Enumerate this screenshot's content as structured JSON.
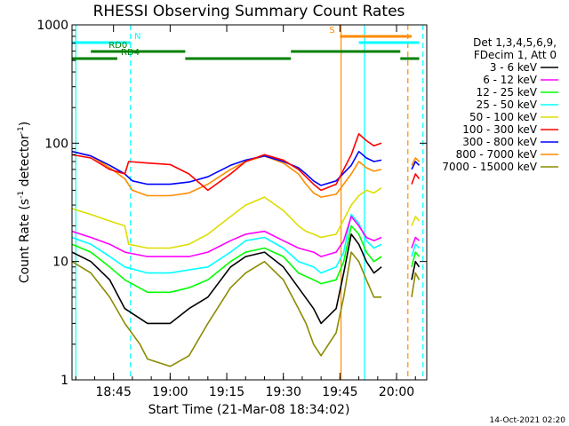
{
  "chart_data": {
    "type": "line",
    "title": "RHESSI Observing Summary Count Rates",
    "xlabel": "Start Time (21-Mar-08 18:34:02)",
    "ylabel_main": "Count Rate (s",
    "ylabel_sup1": "-1",
    "ylabel_mid": " detector",
    "ylabel_sup2": "-1",
    "ylabel_end": ")",
    "yscale": "log",
    "ylim": [
      1,
      1000
    ],
    "xlim_minutes": [
      0,
      94
    ],
    "x_tick_minutes": [
      11,
      26,
      41,
      56,
      71,
      86
    ],
    "x_tick_labels": [
      "18:45",
      "19:00",
      "19:15",
      "19:30",
      "19:45",
      "20:00"
    ],
    "y_tick_values": [
      1,
      10,
      100,
      1000
    ],
    "y_tick_labels": [
      "1",
      "10",
      "100",
      "1000"
    ],
    "legend_header": [
      "Det 1,3,4,5,6,9,",
      "FDecim 1, Att 0"
    ],
    "series": [
      {
        "name": "3 - 6 keV",
        "color": "#000000",
        "segments": [
          {
            "x": [
              0,
              5,
              10,
              14,
              20,
              26,
              31,
              36,
              42,
              46,
              51,
              56,
              60,
              64,
              66,
              70,
              72,
              74,
              76,
              78,
              80,
              82
            ],
            "y": [
              12,
              10,
              7,
              4,
              3,
              3,
              4,
              5,
              9,
              11,
              12,
              9,
              6,
              4,
              3,
              4,
              8,
              17,
              14,
              10,
              8,
              9
            ]
          },
          {
            "x": [
              90,
              91,
              92
            ],
            "y": [
              7,
              10,
              9
            ]
          }
        ]
      },
      {
        "name": "6 - 12 keV",
        "color": "#ff00ff",
        "segments": [
          {
            "x": [
              0,
              5,
              10,
              14,
              20,
              26,
              31,
              36,
              42,
              46,
              51,
              56,
              60,
              64,
              66,
              70,
              72,
              74,
              76,
              78,
              80,
              82
            ],
            "y": [
              18,
              16,
              14,
              12,
              11,
              11,
              11,
              12,
              15,
              17,
              18,
              15,
              13,
              12,
              11,
              12,
              15,
              24,
              20,
              16,
              15,
              16
            ]
          },
          {
            "x": [
              90,
              91,
              92
            ],
            "y": [
              13,
              16,
              15
            ]
          }
        ]
      },
      {
        "name": "12 - 25 keV",
        "color": "#00ff00",
        "segments": [
          {
            "x": [
              0,
              5,
              10,
              14,
              20,
              26,
              31,
              36,
              42,
              46,
              51,
              56,
              60,
              64,
              66,
              70,
              72,
              74,
              76,
              78,
              80,
              82
            ],
            "y": [
              14,
              12,
              9,
              7,
              5.5,
              5.5,
              6,
              7,
              10,
              12,
              13,
              11,
              8,
              7,
              6.5,
              7,
              10,
              20,
              17,
              12,
              10,
              11
            ]
          },
          {
            "x": [
              90,
              91,
              92
            ],
            "y": [
              9,
              12,
              11
            ]
          }
        ]
      },
      {
        "name": "25 - 50 keV",
        "color": "#00ffff",
        "segments": [
          {
            "x": [
              0,
              5,
              10,
              14,
              20,
              26,
              31,
              36,
              42,
              46,
              51,
              56,
              60,
              64,
              66,
              70,
              72,
              74,
              76,
              78,
              80,
              82
            ],
            "y": [
              16,
              14,
              11,
              9,
              8,
              8,
              8.5,
              9,
              12,
              15,
              16,
              13,
              10,
              9,
              8,
              9,
              12,
              25,
              21,
              15,
              13,
              14
            ]
          },
          {
            "x": [
              90,
              91,
              92
            ],
            "y": [
              11,
              14,
              13
            ]
          }
        ]
      },
      {
        "name": "50 - 100 keV",
        "color": "#dddd00",
        "segments": [
          {
            "x": [
              0,
              5,
              10,
              14,
              15,
              20,
              26,
              31,
              36,
              42,
              46,
              51,
              56,
              60,
              62,
              64,
              66,
              70,
              74,
              76,
              78,
              80,
              82
            ],
            "y": [
              28,
              25,
              22,
              20,
              14,
              13,
              13,
              14,
              17,
              24,
              30,
              35,
              27,
              20,
              18,
              17,
              16,
              17,
              30,
              36,
              40,
              38,
              42
            ]
          },
          {
            "x": [
              90,
              91,
              92
            ],
            "y": [
              20,
              24,
              22
            ]
          }
        ]
      },
      {
        "name": "100 - 300 keV",
        "color": "#ff0000",
        "segments": [
          {
            "x": [
              0,
              5,
              10,
              14,
              15,
              20,
              26,
              31,
              36,
              42,
              46,
              51,
              56,
              60,
              62,
              64,
              66,
              70,
              74,
              76,
              78,
              80,
              82
            ],
            "y": [
              80,
              75,
              60,
              55,
              70,
              68,
              66,
              55,
              40,
              55,
              70,
              80,
              72,
              60,
              52,
              45,
              40,
              45,
              80,
              120,
              105,
              95,
              100
            ]
          },
          {
            "x": [
              90,
              91,
              92
            ],
            "y": [
              45,
              55,
              50
            ]
          }
        ]
      },
      {
        "name": "300 - 800 keV",
        "color": "#0000ff",
        "segments": [
          {
            "x": [
              0,
              5,
              10,
              14,
              16,
              20,
              26,
              31,
              36,
              42,
              46,
              51,
              56,
              60,
              62,
              64,
              66,
              70,
              74,
              76,
              78,
              80,
              82
            ],
            "y": [
              85,
              78,
              65,
              55,
              48,
              45,
              45,
              47,
              52,
              65,
              72,
              78,
              70,
              62,
              55,
              48,
              44,
              48,
              65,
              85,
              75,
              70,
              72
            ]
          },
          {
            "x": [
              90,
              91,
              92
            ],
            "y": [
              60,
              70,
              65
            ]
          }
        ]
      },
      {
        "name": "800 - 7000 keV",
        "color": "#ff8c00",
        "segments": [
          {
            "x": [
              0,
              5,
              10,
              14,
              16,
              20,
              26,
              31,
              36,
              42,
              46,
              51,
              56,
              60,
              62,
              64,
              66,
              70,
              74,
              76,
              78,
              80,
              82
            ],
            "y": [
              85,
              78,
              62,
              50,
              40,
              36,
              36,
              38,
              45,
              60,
              70,
              78,
              68,
              55,
              45,
              38,
              35,
              37,
              55,
              70,
              62,
              58,
              60
            ]
          },
          {
            "x": [
              90,
              91,
              92
            ],
            "y": [
              65,
              75,
              70
            ]
          }
        ]
      },
      {
        "name": "7000 - 15000 keV",
        "color": "#8b8b00",
        "segments": [
          {
            "x": [
              0,
              5,
              10,
              14,
              18,
              20,
              26,
              31,
              36,
              42,
              46,
              51,
              56,
              60,
              62,
              64,
              66,
              70,
              72,
              74,
              76,
              78,
              80,
              82
            ],
            "y": [
              10,
              8,
              5,
              3,
              2,
              1.5,
              1.3,
              1.6,
              3,
              6,
              8,
              10,
              7,
              4,
              3,
              2,
              1.6,
              2.5,
              5,
              12,
              10,
              7,
              5,
              5
            ]
          },
          {
            "x": [
              90,
              91,
              92
            ],
            "y": [
              5,
              8,
              7
            ]
          }
        ]
      }
    ],
    "flag_bars": [
      {
        "label": "N",
        "color": "#00ffff",
        "segments": [
          [
            0,
            15.5
          ],
          [
            76,
            92
          ]
        ]
      },
      {
        "label": "S",
        "color": "#ff8c00",
        "segments": [
          [
            71,
            90
          ]
        ]
      },
      {
        "label": "RD0",
        "color": "#008000",
        "segments": [
          [
            5,
            30
          ],
          [
            58,
            87
          ]
        ]
      },
      {
        "label": "RD4",
        "color": "#008000",
        "segments": [
          [
            0,
            12
          ],
          [
            30,
            58
          ],
          [
            87,
            92
          ]
        ]
      }
    ],
    "vertical_markers": [
      {
        "x": 1,
        "color": "#00ffff",
        "style": "solid"
      },
      {
        "x": 15.5,
        "color": "#00ffff",
        "style": "dashed"
      },
      {
        "x": 71.3,
        "color": "#ff8c00",
        "style": "solid"
      },
      {
        "x": 77.5,
        "color": "#00ffff",
        "style": "solid"
      },
      {
        "x": 89,
        "color": "#ff8c00",
        "style": "dashed"
      },
      {
        "x": 93,
        "color": "#00ffff",
        "style": "dashed"
      }
    ],
    "grid": false,
    "legend_position": "right"
  },
  "timestamp": "14-Oct-2021 02:20"
}
